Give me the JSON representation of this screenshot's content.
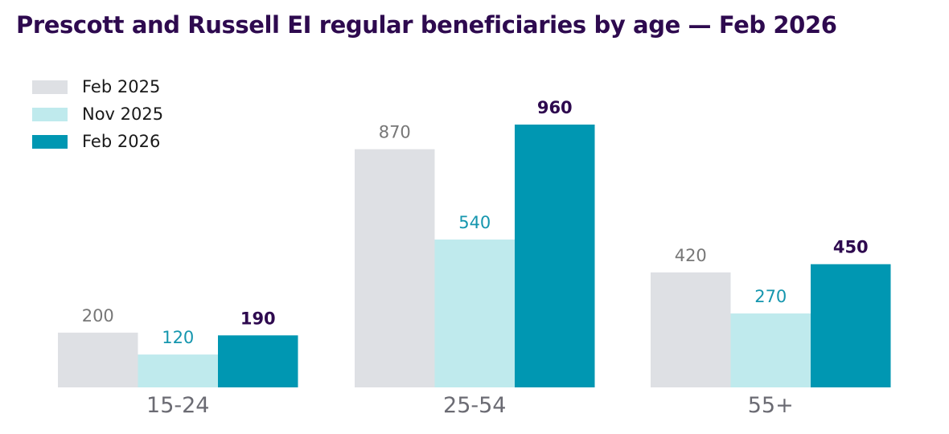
{
  "title": "Prescott and Russell EI regular beneficiaries by age — Feb 2026",
  "colors": {
    "title": "#2e0a4f",
    "axis_label": "#6b6b73",
    "Feb 2025": "#dee0e4",
    "Nov 2025": "#bfeaed",
    "Feb 2026": "#0097b2",
    "label_feb2025": "#777777",
    "label_nov2025": "#1596ae",
    "label_feb2026": "#2e0a4f"
  },
  "chart_data": {
    "type": "bar",
    "title": "Prescott and Russell EI regular beneficiaries by age — Feb 2026",
    "categories": [
      "15-24",
      "25-54",
      "55+"
    ],
    "series": [
      {
        "name": "Feb 2025",
        "values": [
          200,
          870,
          420
        ]
      },
      {
        "name": "Nov 2025",
        "values": [
          120,
          540,
          270
        ]
      },
      {
        "name": "Feb 2026",
        "values": [
          190,
          960,
          450
        ]
      }
    ],
    "ylim": [
      0,
      960
    ],
    "grid": false,
    "legend_position": "top-left",
    "data_labels": true
  }
}
